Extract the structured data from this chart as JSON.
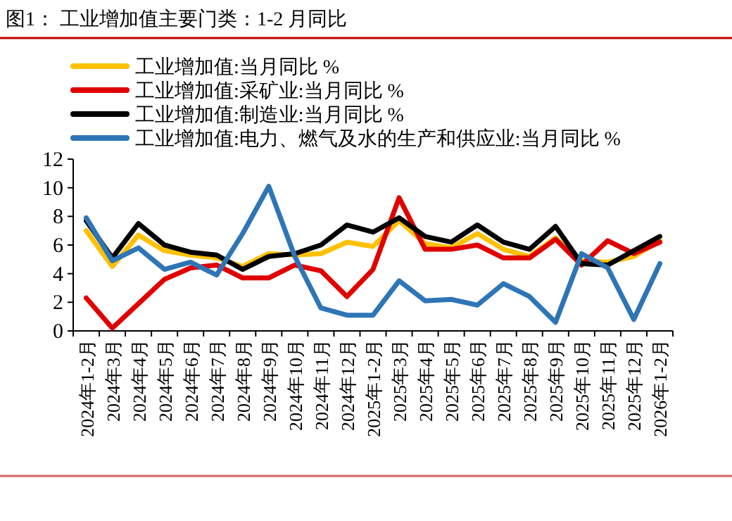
{
  "chart_data": {
    "type": "line",
    "title": "图1：  工业增加值主要门类：1-2 月同比",
    "categories": [
      "2024年1-2月",
      "2024年3月",
      "2024年4月",
      "2024年5月",
      "2024年6月",
      "2024年7月",
      "2024年8月",
      "2024年9月",
      "2024年10月",
      "2024年11月",
      "2024年12月",
      "2025年1-2月",
      "2025年3月",
      "2025年4月",
      "2025年5月",
      "2025年6月",
      "2025年7月",
      "2025年8月",
      "2025年9月",
      "2025年10月",
      "2025年11月",
      "2025年12月",
      "2026年1-2月"
    ],
    "series": [
      {
        "name": "工业增加值:当月同比 %",
        "color": "#ffc000",
        "values": [
          7.0,
          4.5,
          6.7,
          5.6,
          5.3,
          5.1,
          4.5,
          5.4,
          5.3,
          5.4,
          6.2,
          5.9,
          7.7,
          6.1,
          5.8,
          6.8,
          5.7,
          5.2,
          6.5,
          4.9,
          4.8,
          5.2,
          6.3
        ]
      },
      {
        "name": "工业增加值:采矿业:当月同比 %",
        "color": "#e00000",
        "values": [
          2.3,
          0.2,
          1.9,
          3.6,
          4.4,
          4.6,
          3.7,
          3.7,
          4.6,
          4.2,
          2.4,
          4.3,
          9.3,
          5.7,
          5.7,
          6.0,
          5.1,
          5.1,
          6.4,
          4.6,
          6.3,
          5.4,
          6.2
        ]
      },
      {
        "name": "工业增加值:制造业:当月同比 %",
        "color": "#000000",
        "values": [
          7.7,
          5.1,
          7.5,
          6.0,
          5.5,
          5.3,
          4.3,
          5.2,
          5.4,
          6.0,
          7.4,
          6.9,
          7.9,
          6.6,
          6.2,
          7.4,
          6.2,
          5.7,
          7.3,
          4.7,
          4.6,
          5.6,
          6.6
        ]
      },
      {
        "name": "工业增加值:电力、燃气及水的生产和供应业:当月同比 %",
        "color": "#2e75b6",
        "values": [
          7.9,
          4.9,
          5.8,
          4.3,
          4.8,
          3.9,
          6.8,
          10.1,
          5.2,
          1.6,
          1.1,
          1.1,
          3.5,
          2.1,
          2.2,
          1.8,
          3.3,
          2.4,
          0.6,
          5.4,
          4.4,
          0.8,
          4.7
        ]
      }
    ],
    "ylim": [
      0,
      12
    ],
    "yticks": [
      0,
      2,
      4,
      6,
      8,
      10,
      12
    ],
    "legend": "top left",
    "grid": false
  }
}
